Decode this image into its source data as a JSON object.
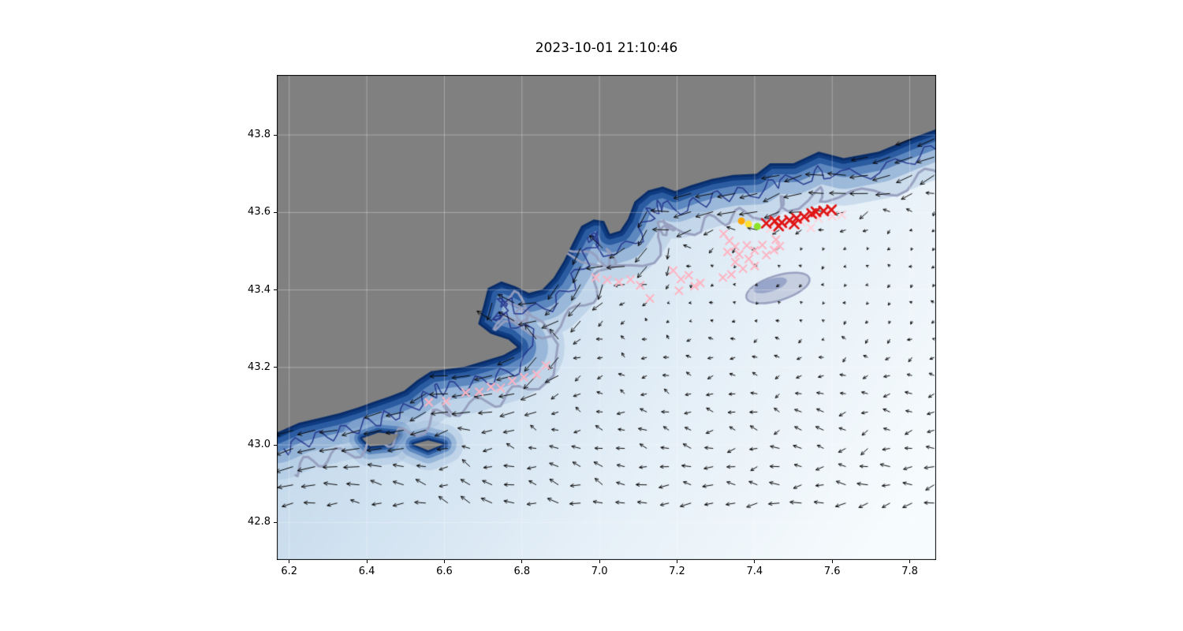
{
  "chart_data": {
    "type": "scatter",
    "title": "2023-10-01 21:10:46",
    "xlabel": "",
    "ylabel": "",
    "xlim": [
      6.168,
      7.868
    ],
    "ylim": [
      42.703,
      43.955
    ],
    "xticks": [
      6.2,
      6.4,
      6.6,
      6.8,
      7.0,
      7.2,
      7.4,
      7.6,
      7.8
    ],
    "xtick_labels": [
      "6.2",
      "6.4",
      "6.6",
      "6.8",
      "7.0",
      "7.2",
      "7.4",
      "7.6",
      "7.8"
    ],
    "yticks": [
      42.8,
      43.0,
      43.2,
      43.4,
      43.6,
      43.8
    ],
    "ytick_labels": [
      "42.8",
      "43.0",
      "43.2",
      "43.4",
      "43.6",
      "43.8"
    ],
    "grid": true,
    "colors": {
      "land": "#808080",
      "frame": "#000000",
      "grid_line": "rgba(255,255,255,0.32)",
      "ocean_gradient": [
        "#93b9de",
        "#c9ddee",
        "#e6f0f8",
        "#f6fbfd"
      ],
      "slope_palette": [
        "rgba(166,192,221,0.45)",
        "rgba(121,158,204,0.55)",
        "rgba(72,119,181,0.75)",
        "rgba(38,86,156,0.90)",
        "rgba(15,59,128,1)",
        "rgba(9,45,105,1)"
      ],
      "contour_navy": "rgba(35,52,140,0.9)",
      "contour_gray": "rgba(150,158,190,0.95)",
      "quiver": "#0a0a0a"
    },
    "coastline": [
      [
        7.868,
        43.815
      ],
      [
        7.8,
        43.79
      ],
      [
        7.72,
        43.757
      ],
      [
        7.63,
        43.74
      ],
      [
        7.565,
        43.757
      ],
      [
        7.5,
        43.727
      ],
      [
        7.44,
        43.727
      ],
      [
        7.405,
        43.7
      ],
      [
        7.345,
        43.697
      ],
      [
        7.29,
        43.687
      ],
      [
        7.235,
        43.67
      ],
      [
        7.195,
        43.655
      ],
      [
        7.163,
        43.667
      ],
      [
        7.125,
        43.657
      ],
      [
        7.09,
        43.628
      ],
      [
        7.073,
        43.583
      ],
      [
        7.053,
        43.553
      ],
      [
        7.027,
        43.545
      ],
      [
        7.012,
        43.578
      ],
      [
        6.985,
        43.582
      ],
      [
        6.953,
        43.565
      ],
      [
        6.93,
        43.52
      ],
      [
        6.908,
        43.475
      ],
      [
        6.882,
        43.432
      ],
      [
        6.853,
        43.402
      ],
      [
        6.818,
        43.392
      ],
      [
        6.782,
        43.41
      ],
      [
        6.747,
        43.422
      ],
      [
        6.712,
        43.405
      ],
      [
        6.7,
        43.357
      ],
      [
        6.687,
        43.312
      ],
      [
        6.72,
        43.287
      ],
      [
        6.765,
        43.272
      ],
      [
        6.788,
        43.252
      ],
      [
        6.752,
        43.232
      ],
      [
        6.703,
        43.217
      ],
      [
        6.652,
        43.202
      ],
      [
        6.602,
        43.195
      ],
      [
        6.565,
        43.19
      ],
      [
        6.53,
        43.167
      ],
      [
        6.497,
        43.14
      ],
      [
        6.458,
        43.125
      ],
      [
        6.42,
        43.112
      ],
      [
        6.378,
        43.097
      ],
      [
        6.33,
        43.082
      ],
      [
        6.28,
        43.07
      ],
      [
        6.225,
        43.057
      ],
      [
        6.168,
        43.032
      ]
    ],
    "islands": [
      [
        [
          6.388,
          43.017
        ],
        [
          6.43,
          43.032
        ],
        [
          6.482,
          43.027
        ],
        [
          6.462,
          43.002
        ],
        [
          6.408,
          42.996
        ]
      ],
      [
        [
          6.52,
          43.002
        ],
        [
          6.558,
          43.012
        ],
        [
          6.598,
          43.002
        ],
        [
          6.558,
          42.986
        ]
      ]
    ],
    "bathy_patch": {
      "center": [
        7.46,
        43.405
      ],
      "rx": 0.085,
      "ry": 0.032,
      "inner_center": [
        7.44,
        43.412
      ],
      "inner_rx": 0.045,
      "inner_ry": 0.016
    },
    "quiver": {
      "lon_start": 6.21,
      "lon_end": 7.85,
      "lon_step": 0.057,
      "lat_start": 42.85,
      "lat_end": 43.88,
      "lat_step": 0.047,
      "description": "surface current vectors; westward along-slope jet, weaker variable flow offshore"
    },
    "series": [
      {
        "name": "drifter-positions-pink",
        "marker": "x",
        "color": "#ffb3c1",
        "size": 4.5,
        "line_width": 2,
        "points": [
          [
            6.56,
            43.11
          ],
          [
            6.605,
            43.113
          ],
          [
            6.655,
            43.135
          ],
          [
            6.69,
            43.137
          ],
          [
            6.72,
            43.15
          ],
          [
            6.745,
            43.147
          ],
          [
            6.775,
            43.165
          ],
          [
            6.805,
            43.175
          ],
          [
            6.838,
            43.182
          ],
          [
            6.862,
            43.205
          ],
          [
            6.99,
            43.432
          ],
          [
            7.02,
            43.426
          ],
          [
            7.05,
            43.42
          ],
          [
            7.08,
            43.427
          ],
          [
            7.105,
            43.412
          ],
          [
            7.13,
            43.378
          ],
          [
            7.19,
            43.45
          ],
          [
            7.21,
            43.428
          ],
          [
            7.23,
            43.438
          ],
          [
            7.245,
            43.41
          ],
          [
            7.205,
            43.398
          ],
          [
            7.26,
            43.418
          ],
          [
            7.32,
            43.545
          ],
          [
            7.335,
            43.527
          ],
          [
            7.35,
            43.512
          ],
          [
            7.33,
            43.498
          ],
          [
            7.36,
            43.492
          ],
          [
            7.38,
            43.515
          ],
          [
            7.4,
            43.502
          ],
          [
            7.42,
            43.516
          ],
          [
            7.35,
            43.472
          ],
          [
            7.37,
            43.455
          ],
          [
            7.4,
            43.462
          ],
          [
            7.43,
            43.49
          ],
          [
            7.45,
            43.503
          ],
          [
            7.465,
            43.513
          ],
          [
            7.455,
            43.53
          ],
          [
            7.34,
            43.44
          ],
          [
            7.318,
            43.432
          ],
          [
            7.385,
            43.48
          ]
        ]
      },
      {
        "name": "drifter-positions-lightpink",
        "marker": "x",
        "color": "#ffd2da",
        "size": 4.5,
        "line_width": 2,
        "points": [
          [
            7.44,
            43.558
          ],
          [
            7.48,
            43.565
          ],
          [
            7.52,
            43.575
          ],
          [
            7.565,
            43.585
          ],
          [
            7.6,
            43.59
          ],
          [
            7.625,
            43.594
          ],
          [
            7.59,
            43.601
          ],
          [
            7.545,
            43.56
          ]
        ]
      },
      {
        "name": "observations-red",
        "marker": "x",
        "color": "#e01616",
        "size": 5.5,
        "line_width": 2.8,
        "points": [
          [
            7.43,
            43.572
          ],
          [
            7.452,
            43.578
          ],
          [
            7.47,
            43.574
          ],
          [
            7.49,
            43.58
          ],
          [
            7.508,
            43.585
          ],
          [
            7.528,
            43.589
          ],
          [
            7.547,
            43.597
          ],
          [
            7.558,
            43.602
          ],
          [
            7.578,
            43.604
          ],
          [
            7.598,
            43.607
          ],
          [
            7.462,
            43.565
          ],
          [
            7.502,
            43.57
          ]
        ]
      },
      {
        "name": "release-points",
        "marker": "circle",
        "size": 4.5,
        "points": [
          {
            "lon": 7.366,
            "lat": 43.578,
            "color": "#ffa500"
          },
          {
            "lon": 7.384,
            "lat": 43.57,
            "color": "#ffe135"
          },
          {
            "lon": 7.407,
            "lat": 43.564,
            "color": "#8ce32a"
          }
        ]
      }
    ]
  }
}
